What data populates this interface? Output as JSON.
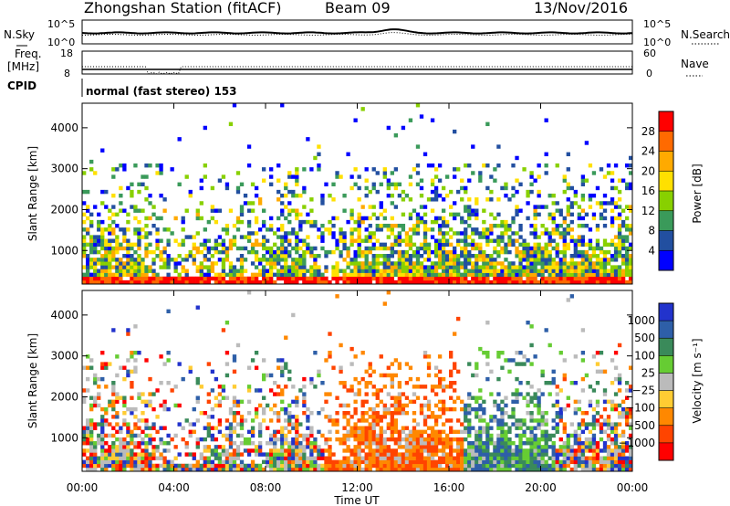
{
  "header": {
    "station": "Zhongshan Station (fitACF)",
    "beam": "Beam 09",
    "date": "13/Nov/2016"
  },
  "top_panels": {
    "nsky_label": "N.Sky",
    "nsearch_label": "N.Search",
    "freq_label_1": "Freq.",
    "freq_label_2": "[MHz]",
    "nave_label": "Nave",
    "cpid_label": "CPID",
    "cpid_text": "normal (fast stereo) 153",
    "left_ticks_nsky": [
      "10^5",
      "10^0"
    ],
    "right_ticks_nsky": [
      "10^5",
      "10^0"
    ],
    "left_ticks_freq": [
      "18",
      "8"
    ],
    "right_ticks_freq": [
      "60",
      "0"
    ]
  },
  "colorbars": {
    "power": {
      "label": "Power [dB]",
      "ticks": [
        "28",
        "24",
        "20",
        "16",
        "12",
        "8",
        "4"
      ],
      "colors": [
        "#ff0000",
        "#ff6a00",
        "#ffaa00",
        "#ffe000",
        "#88d000",
        "#3a9a5a",
        "#224fa0",
        "#0000ff"
      ]
    },
    "velocity": {
      "label": "Velocity [m s⁻¹]",
      "ticks": [
        "1000",
        "500",
        "100",
        "25",
        "−25",
        "−100",
        "−500",
        "−1000"
      ],
      "colors": [
        "#2233cc",
        "#2e5fa8",
        "#3a8a5a",
        "#66cc33",
        "#bbbbbb",
        "#ffcc33",
        "#ff8800",
        "#ff4400",
        "#ff0000"
      ]
    }
  },
  "chart_data": [
    {
      "type": "heatmap",
      "name": "power",
      "ylabel": "Slant Range [km]",
      "ylim": [
        180,
        4600
      ],
      "yticks": [
        1000,
        2000,
        3000,
        4000
      ],
      "xlim": [
        0,
        24
      ],
      "xticks": [
        "00:00",
        "04:00",
        "08:00",
        "12:00",
        "16:00",
        "20:00",
        "00:00"
      ],
      "grid": false
    },
    {
      "type": "heatmap",
      "name": "velocity",
      "ylabel": "Slant Range [km]",
      "xlabel": "Time UT",
      "ylim": [
        180,
        4600
      ],
      "yticks": [
        1000,
        2000,
        3000,
        4000
      ],
      "xlim": [
        0,
        24
      ],
      "xticks": [
        "00:00",
        "04:00",
        "08:00",
        "12:00",
        "16:00",
        "20:00",
        "00:00"
      ],
      "grid": false
    }
  ]
}
